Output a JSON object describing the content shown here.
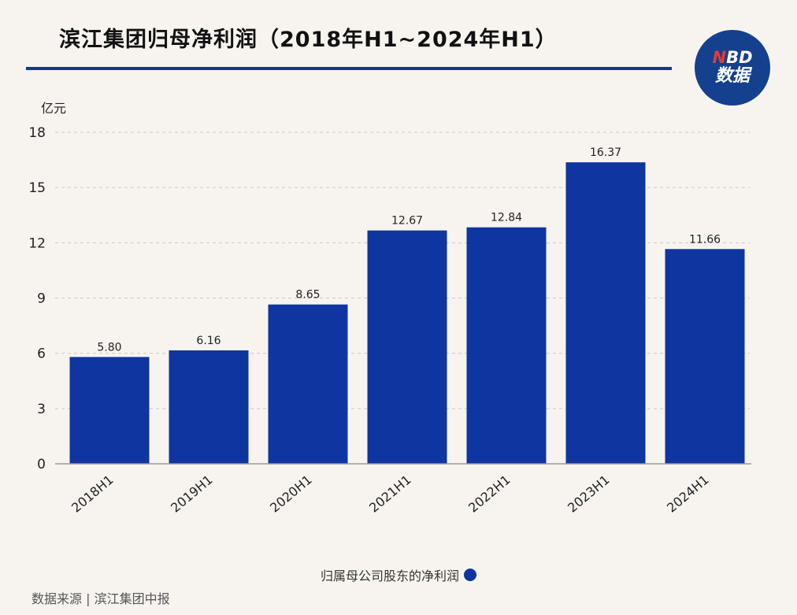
{
  "title": "滨江集团归母净利润（2018年H1~2024年H1）",
  "logo": {
    "top": "NBD",
    "bottom": "数据"
  },
  "source": "数据来源 | 滨江集团中报",
  "colors": {
    "bar": "#0f35a0",
    "rule": "#0e3a8c",
    "logo_bg": "#14408e"
  },
  "chart_data": {
    "type": "bar",
    "title": "滨江集团归母净利润（2018年H1~2024年H1）",
    "unit": "亿元",
    "categories": [
      "2018H1",
      "2019H1",
      "2020H1",
      "2021H1",
      "2022H1",
      "2023H1",
      "2024H1"
    ],
    "series": [
      {
        "name": "归属母公司股东的净利润",
        "values": [
          5.8,
          6.16,
          8.65,
          12.67,
          12.84,
          16.37,
          11.66
        ]
      }
    ],
    "value_labels": [
      "5.80",
      "6.16",
      "8.65",
      "12.67",
      "12.84",
      "16.37",
      "11.66"
    ],
    "yticks": [
      "0",
      "3",
      "6",
      "9",
      "12",
      "15",
      "18"
    ],
    "ylim": [
      0,
      18
    ],
    "grid": true,
    "legend": "bottom-center"
  }
}
